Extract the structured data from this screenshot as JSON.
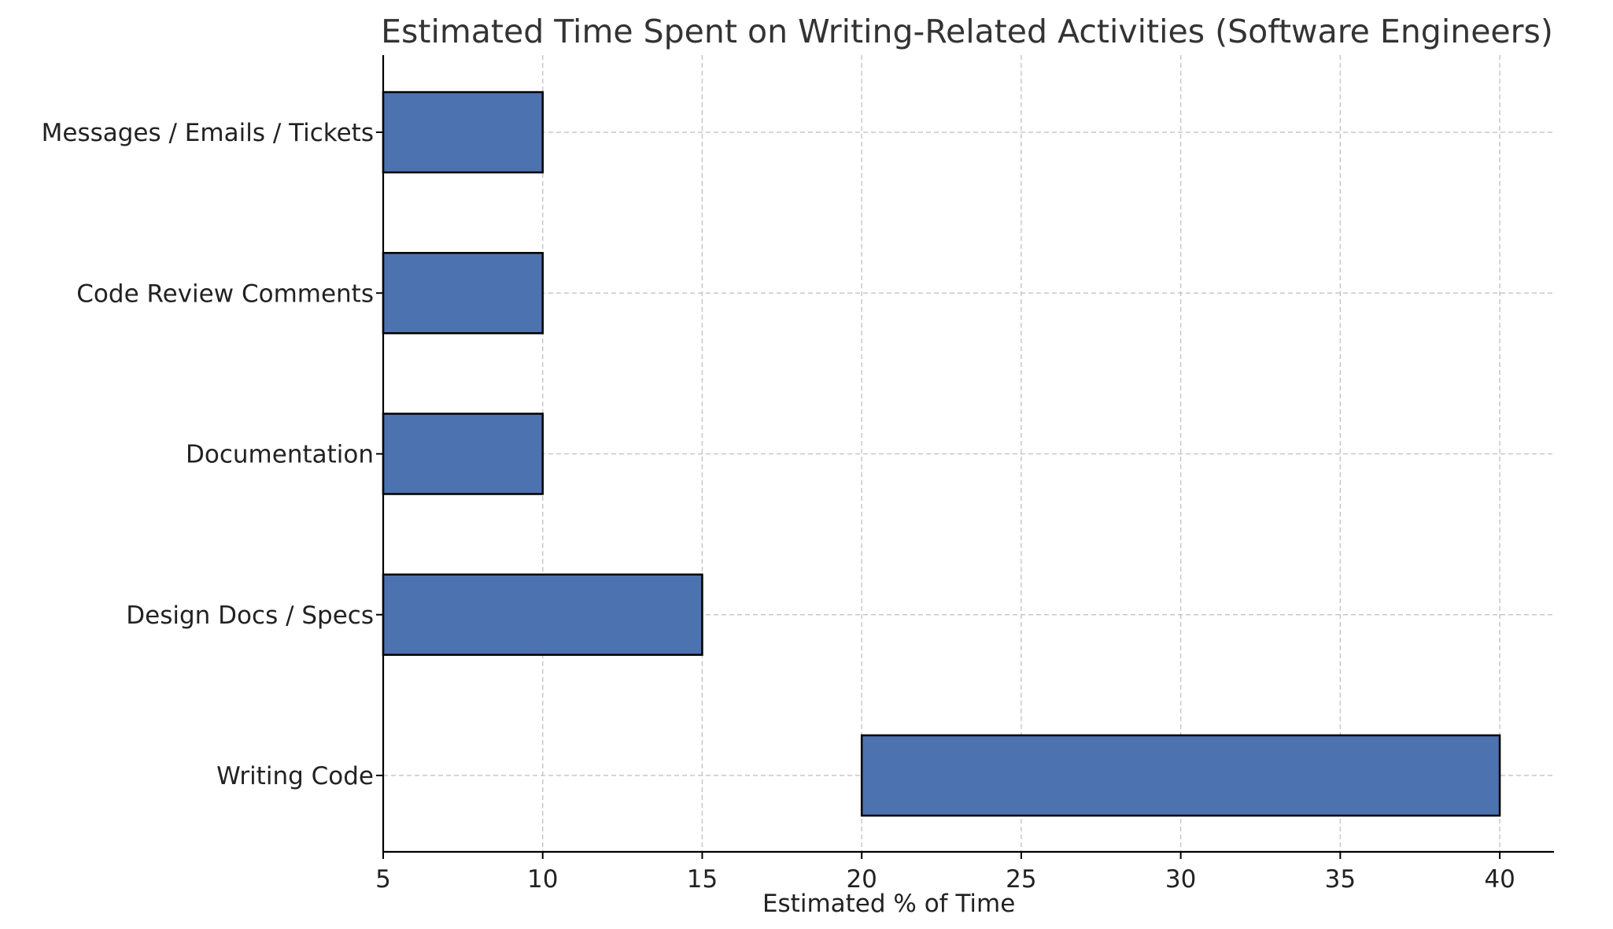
{
  "chart_data": {
    "type": "bar",
    "orientation": "horizontal",
    "title": "Estimated Time Spent on Writing-Related Activities (Software Engineers)",
    "xlabel": "Estimated % of Time",
    "ylabel": "",
    "categories": [
      "Writing Code",
      "Design Docs / Specs",
      "Documentation",
      "Code Review Comments",
      "Messages / Emails / Tickets"
    ],
    "series": [
      {
        "ranges": [
          [
            20,
            40
          ],
          [
            5,
            15
          ],
          [
            5,
            10
          ],
          [
            5,
            10
          ],
          [
            5,
            10
          ]
        ],
        "color": "#4c72b0"
      }
    ],
    "xlim": [
      5,
      41.7
    ],
    "xticks": [
      5,
      10,
      15,
      20,
      25,
      30,
      35,
      40
    ],
    "grid": true,
    "legend": "none"
  }
}
